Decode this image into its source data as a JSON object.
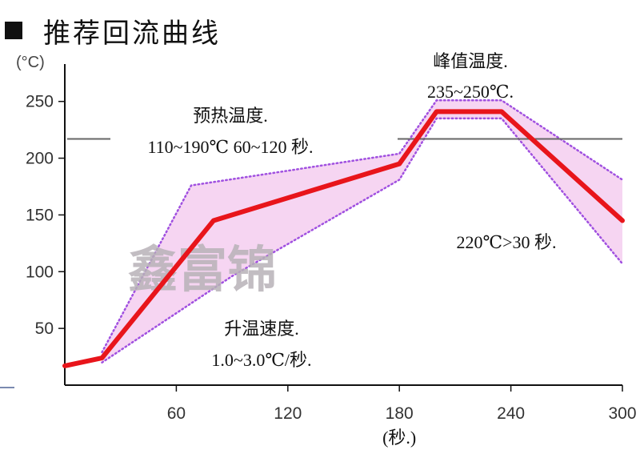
{
  "title": "推荐回流曲线",
  "chart_data": {
    "type": "line",
    "ylabel": "(°C)",
    "xlabel": "(秒.)",
    "xlim": [
      0,
      300
    ],
    "ylim": [
      0,
      290
    ],
    "xticks": [
      60,
      120,
      180,
      240,
      300
    ],
    "yticks": [
      50,
      100,
      150,
      200,
      250
    ],
    "colors": {
      "profile": "#e8151b",
      "band_fill": "#f6d5f2",
      "band_edge": "#a050e0",
      "ref_line": "#666666",
      "axis": "#111111"
    },
    "series": [
      {
        "values": [
          [
            0,
            17
          ],
          [
            20,
            24
          ],
          [
            80,
            145
          ],
          [
            180,
            195
          ],
          [
            200,
            241
          ],
          [
            235,
            241
          ],
          [
            300,
            145
          ]
        ]
      }
    ],
    "band_upper": [
      [
        20,
        29
      ],
      [
        68,
        176
      ],
      [
        180,
        204
      ],
      [
        200,
        251
      ],
      [
        235,
        251
      ],
      [
        300,
        181
      ]
    ],
    "band_lower": [
      [
        20,
        20
      ],
      [
        90,
        96
      ],
      [
        180,
        181
      ],
      [
        200,
        235
      ],
      [
        235,
        235
      ],
      [
        300,
        107
      ]
    ],
    "reference_line_y": 217,
    "annotations": [
      {
        "id": "preheat",
        "lines": [
          "预热温度.",
          "110~190℃  60~120 秒."
        ]
      },
      {
        "id": "peak",
        "lines": [
          "峰值温度.",
          "235~250℃."
        ]
      },
      {
        "id": "tal",
        "lines": [
          "220℃>30 秒."
        ]
      },
      {
        "id": "ramp",
        "lines": [
          "升温速度.",
          "1.0~3.0℃/秒."
        ]
      }
    ],
    "watermark": "鑫富锦"
  }
}
